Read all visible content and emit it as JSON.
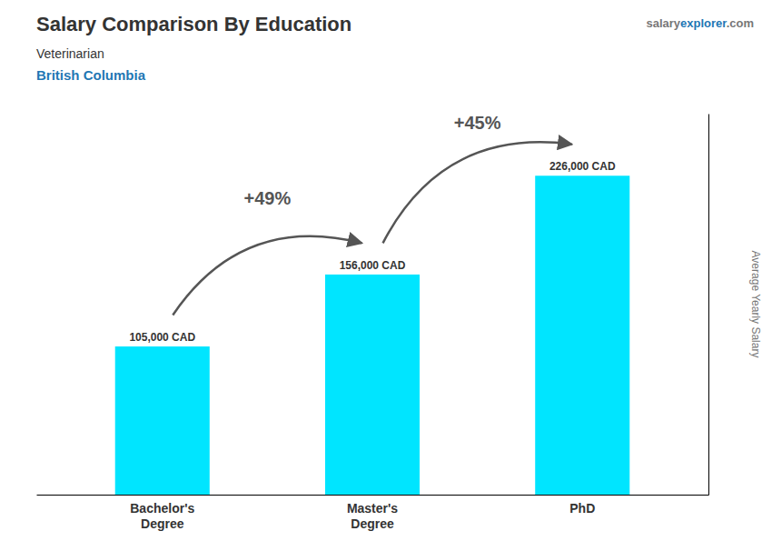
{
  "chart_data": {
    "type": "bar",
    "title": "Salary Comparison By Education",
    "subtitle": [
      "Veterinarian",
      "British Columbia"
    ],
    "watermark": [
      "salary",
      "explorer",
      ".com"
    ],
    "ylabel": "Average Yearly Salary",
    "categories": [
      "Bachelor's\nDegree",
      "Master's\nDegree",
      "PhD"
    ],
    "values": [
      105000,
      156000,
      226000
    ],
    "value_labels": [
      "105,000 CAD",
      "156,000 CAD",
      "226,000 CAD"
    ],
    "annotations": [
      "+49%",
      "+45%"
    ],
    "color": "#00e5ff",
    "ylim": [
      0,
      270000
    ],
    "grid": false,
    "data_labels": true,
    "tick_labels": "x"
  }
}
